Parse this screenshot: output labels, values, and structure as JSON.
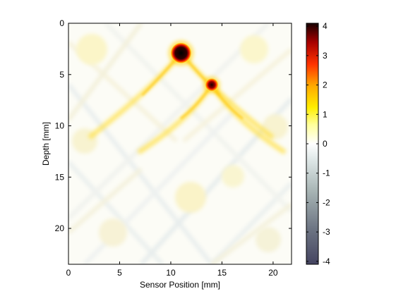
{
  "chart_data": {
    "type": "heatmap",
    "title": "",
    "xlabel": "Sensor Position [mm]",
    "ylabel": "Depth [mm]",
    "xlim": [
      0,
      21.8
    ],
    "ylim": [
      0,
      23.5
    ],
    "y_direction": "down",
    "x_ticks": [
      0,
      5,
      10,
      15,
      20
    ],
    "y_ticks": [
      0,
      5,
      10,
      15,
      20
    ],
    "colorbar": {
      "range": [
        -4.1,
        4.1
      ],
      "ticks": [
        -4,
        -3,
        -2,
        -1,
        0,
        1,
        2,
        3,
        4
      ],
      "colormap": "bone (negative) to hot (positive), white at zero"
    },
    "features": [
      {
        "kind": "strong-positive-spot",
        "x": 11.0,
        "y": 2.9,
        "value": 4.0
      },
      {
        "kind": "strong-positive-spot",
        "x": 14.0,
        "y": 6.0,
        "value": 3.5
      },
      {
        "kind": "positive-arc",
        "apex_x": 11.0,
        "apex_y": 2.9,
        "value": 1.0
      },
      {
        "kind": "positive-arc",
        "apex_x": 14.0,
        "apex_y": 6.0,
        "value": 0.8
      },
      {
        "kind": "negative-band",
        "x": 11.0,
        "y_from": 0.0,
        "y_to": 2.9,
        "value": -0.9
      },
      {
        "kind": "negative-band",
        "x": 13.9,
        "y_from": 6.0,
        "y_to": 10.0,
        "value": -0.7
      }
    ]
  }
}
